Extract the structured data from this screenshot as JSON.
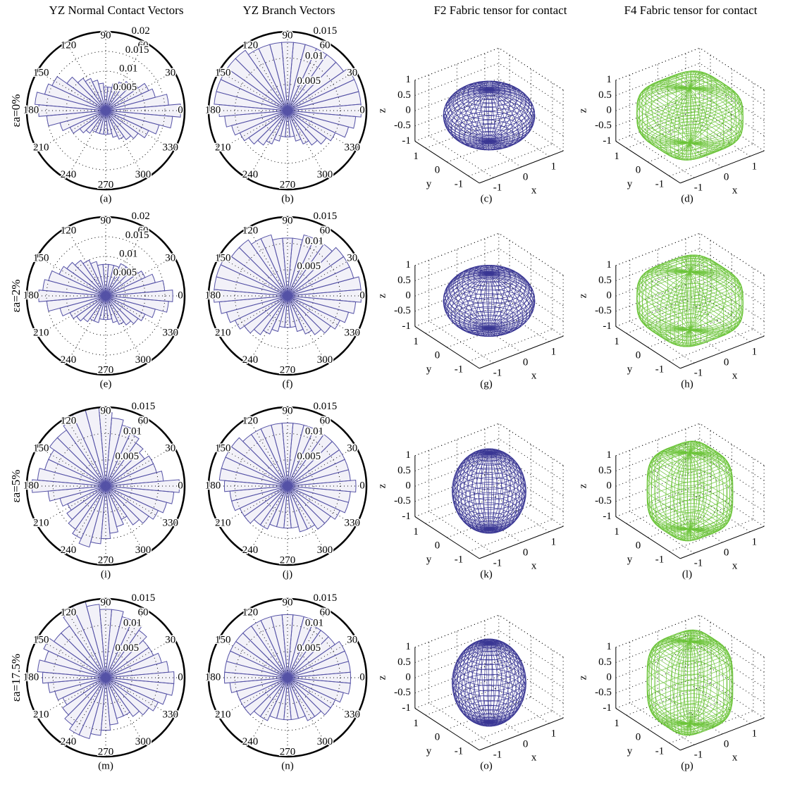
{
  "column_titles": [
    "YZ Normal Contact Vectors",
    "YZ Branch Vectors",
    "F2 Fabric tensor for contact",
    "F4 Fabric tensor for contact"
  ],
  "row_labels": [
    "εa=0%",
    "εa=2%",
    "εa=5%",
    "εa=17.5%"
  ],
  "chart_data": [
    {
      "type": "polar-bar",
      "caption": "(a)",
      "color": "#5552a6",
      "rlim": [
        0,
        0.02
      ],
      "rticks": [
        0.005,
        0.01,
        0.015,
        0.02
      ],
      "theta_ticks": [
        0,
        30,
        60,
        90,
        120,
        150,
        180,
        210,
        240,
        270,
        300,
        330
      ],
      "theta": [
        0,
        10,
        20,
        30,
        40,
        50,
        60,
        70,
        80,
        90,
        100,
        110,
        120,
        130,
        140,
        150,
        160,
        170,
        180,
        190,
        200,
        210,
        220,
        230,
        240,
        250,
        260,
        270,
        280,
        290,
        300,
        310,
        320,
        330,
        340,
        350
      ],
      "values": [
        0.019,
        0.016,
        0.013,
        0.012,
        0.01,
        0.009,
        0.008,
        0.007,
        0.006,
        0.006,
        0.007,
        0.008,
        0.009,
        0.01,
        0.012,
        0.015,
        0.016,
        0.018,
        0.017,
        0.015,
        0.012,
        0.01,
        0.008,
        0.007,
        0.006,
        0.006,
        0.006,
        0.006,
        0.006,
        0.007,
        0.008,
        0.009,
        0.01,
        0.012,
        0.014,
        0.017
      ]
    },
    {
      "type": "polar-bar",
      "caption": "(b)",
      "color": "#5552a6",
      "rlim": [
        0,
        0.015
      ],
      "rticks": [
        0.005,
        0.01,
        0.015
      ],
      "theta_ticks": [
        0,
        30,
        60,
        90,
        120,
        150,
        180,
        210,
        240,
        270,
        300,
        330
      ],
      "theta": [
        0,
        10,
        20,
        30,
        40,
        50,
        60,
        70,
        80,
        90,
        100,
        110,
        120,
        130,
        140,
        150,
        160,
        170,
        180,
        190,
        200,
        210,
        220,
        230,
        240,
        250,
        260,
        270,
        280,
        290,
        300,
        310,
        320,
        330,
        340,
        350
      ],
      "values": [
        0.014,
        0.014,
        0.014,
        0.014,
        0.013,
        0.013,
        0.013,
        0.013,
        0.013,
        0.013,
        0.013,
        0.013,
        0.013,
        0.014,
        0.014,
        0.014,
        0.014,
        0.014,
        0.013,
        0.012,
        0.011,
        0.01,
        0.009,
        0.008,
        0.007,
        0.006,
        0.005,
        0.005,
        0.005,
        0.006,
        0.007,
        0.008,
        0.009,
        0.01,
        0.012,
        0.013
      ]
    },
    {
      "type": "surface",
      "caption": "(c)",
      "order": 2,
      "color": "#3a3794",
      "xlabel": "x",
      "ylabel": "y",
      "zlabel": "z",
      "xlim": [
        -1.5,
        1.5
      ],
      "ylim": [
        -1.5,
        1.5
      ],
      "zlim": [
        -1,
        1
      ],
      "xticks": [
        -1,
        0,
        1
      ],
      "yticks": [
        -1,
        0,
        1
      ],
      "zticks": [
        -1,
        -0.5,
        0,
        0.5,
        1
      ],
      "semi_axes": [
        1.3,
        1.3,
        0.85
      ]
    },
    {
      "type": "surface",
      "caption": "(d)",
      "order": 4,
      "color": "#6cc43a",
      "xlabel": "x",
      "ylabel": "y",
      "zlabel": "z",
      "xlim": [
        -1.5,
        1.5
      ],
      "ylim": [
        -1.5,
        1.5
      ],
      "zlim": [
        -1,
        1
      ],
      "xticks": [
        -1,
        0,
        1
      ],
      "yticks": [
        -1,
        0,
        1
      ],
      "zticks": [
        -1,
        -0.5,
        0,
        0.5,
        1
      ],
      "semi_axes": [
        1.3,
        1.3,
        0.9
      ]
    },
    {
      "type": "polar-bar",
      "caption": "(e)",
      "color": "#5552a6",
      "rlim": [
        0,
        0.02
      ],
      "rticks": [
        0.005,
        0.01,
        0.015,
        0.02
      ],
      "theta_ticks": [
        0,
        30,
        60,
        90,
        120,
        150,
        180,
        210,
        240,
        270,
        300,
        330
      ],
      "theta": [
        0,
        10,
        20,
        30,
        40,
        50,
        60,
        70,
        80,
        90,
        100,
        110,
        120,
        130,
        140,
        150,
        160,
        170,
        180,
        190,
        200,
        210,
        220,
        230,
        240,
        250,
        260,
        270,
        280,
        290,
        300,
        310,
        320,
        330,
        340,
        350
      ],
      "values": [
        0.017,
        0.015,
        0.013,
        0.011,
        0.01,
        0.009,
        0.009,
        0.008,
        0.008,
        0.008,
        0.008,
        0.009,
        0.01,
        0.011,
        0.012,
        0.013,
        0.015,
        0.016,
        0.017,
        0.015,
        0.012,
        0.01,
        0.009,
        0.008,
        0.007,
        0.007,
        0.006,
        0.006,
        0.006,
        0.007,
        0.008,
        0.009,
        0.01,
        0.011,
        0.013,
        0.016
      ]
    },
    {
      "type": "polar-bar",
      "caption": "(f)",
      "color": "#5552a6",
      "rlim": [
        0,
        0.015
      ],
      "rticks": [
        0.005,
        0.01,
        0.015
      ],
      "theta_ticks": [
        0,
        30,
        60,
        90,
        120,
        150,
        180,
        210,
        240,
        270,
        300,
        330
      ],
      "theta": [
        0,
        10,
        20,
        30,
        40,
        50,
        60,
        70,
        80,
        90,
        100,
        110,
        120,
        130,
        140,
        150,
        160,
        170,
        180,
        190,
        200,
        210,
        220,
        230,
        240,
        250,
        260,
        270,
        280,
        290,
        300,
        310,
        320,
        330,
        340,
        350
      ],
      "values": [
        0.014,
        0.014,
        0.013,
        0.013,
        0.013,
        0.012,
        0.012,
        0.012,
        0.011,
        0.011,
        0.011,
        0.012,
        0.012,
        0.013,
        0.013,
        0.014,
        0.014,
        0.014,
        0.014,
        0.013,
        0.012,
        0.011,
        0.01,
        0.009,
        0.008,
        0.007,
        0.006,
        0.006,
        0.006,
        0.007,
        0.008,
        0.009,
        0.01,
        0.011,
        0.012,
        0.013
      ]
    },
    {
      "type": "surface",
      "caption": "(g)",
      "order": 2,
      "color": "#3a3794",
      "xlabel": "x",
      "ylabel": "y",
      "zlabel": "z",
      "xlim": [
        -1.5,
        1.5
      ],
      "ylim": [
        -1.5,
        1.5
      ],
      "zlim": [
        -1,
        1
      ],
      "xticks": [
        -1,
        0,
        1
      ],
      "yticks": [
        -1,
        0,
        1
      ],
      "zticks": [
        -1,
        -0.5,
        0,
        0.5,
        1
      ],
      "semi_axes": [
        1.3,
        1.3,
        0.9
      ]
    },
    {
      "type": "surface",
      "caption": "(h)",
      "order": 4,
      "color": "#6cc43a",
      "xlabel": "x",
      "ylabel": "y",
      "zlabel": "z",
      "xlim": [
        -1.5,
        1.5
      ],
      "ylim": [
        -1.5,
        1.5
      ],
      "zlim": [
        -1,
        1
      ],
      "xticks": [
        -1,
        0,
        1
      ],
      "yticks": [
        -1,
        0,
        1
      ],
      "zticks": [
        -1,
        -0.5,
        0,
        0.5,
        1
      ],
      "semi_axes": [
        1.3,
        1.3,
        0.95
      ]
    },
    {
      "type": "polar-bar",
      "caption": "(i)",
      "color": "#5552a6",
      "rlim": [
        0,
        0.015
      ],
      "rticks": [
        0.005,
        0.01,
        0.015
      ],
      "theta_ticks": [
        0,
        30,
        60,
        90,
        120,
        150,
        180,
        210,
        240,
        270,
        300,
        330
      ],
      "theta": [
        0,
        10,
        20,
        30,
        40,
        50,
        60,
        70,
        80,
        90,
        100,
        110,
        120,
        130,
        140,
        150,
        160,
        170,
        180,
        190,
        200,
        210,
        220,
        230,
        240,
        250,
        260,
        270,
        280,
        290,
        300,
        310,
        320,
        330,
        340,
        350
      ],
      "values": [
        0.014,
        0.011,
        0.01,
        0.01,
        0.009,
        0.01,
        0.011,
        0.012,
        0.013,
        0.014,
        0.015,
        0.015,
        0.014,
        0.013,
        0.013,
        0.012,
        0.012,
        0.013,
        0.014,
        0.011,
        0.009,
        0.008,
        0.009,
        0.01,
        0.011,
        0.012,
        0.011,
        0.01,
        0.009,
        0.008,
        0.007,
        0.009,
        0.01,
        0.011,
        0.012,
        0.013
      ]
    },
    {
      "type": "polar-bar",
      "caption": "(j)",
      "color": "#5552a6",
      "rlim": [
        0,
        0.015
      ],
      "rticks": [
        0.005,
        0.01,
        0.015
      ],
      "theta_ticks": [
        0,
        30,
        60,
        90,
        120,
        150,
        180,
        210,
        240,
        270,
        300,
        330
      ],
      "theta": [
        0,
        10,
        20,
        30,
        40,
        50,
        60,
        70,
        80,
        90,
        100,
        110,
        120,
        130,
        140,
        150,
        160,
        170,
        180,
        190,
        200,
        210,
        220,
        230,
        240,
        250,
        260,
        270,
        280,
        290,
        300,
        310,
        320,
        330,
        340,
        350
      ],
      "values": [
        0.013,
        0.012,
        0.012,
        0.012,
        0.012,
        0.012,
        0.012,
        0.012,
        0.012,
        0.012,
        0.012,
        0.012,
        0.012,
        0.012,
        0.013,
        0.013,
        0.013,
        0.013,
        0.012,
        0.011,
        0.011,
        0.01,
        0.01,
        0.009,
        0.009,
        0.008,
        0.008,
        0.008,
        0.008,
        0.009,
        0.009,
        0.01,
        0.01,
        0.011,
        0.012,
        0.012
      ]
    },
    {
      "type": "surface",
      "caption": "(k)",
      "order": 2,
      "color": "#3a3794",
      "xlabel": "x",
      "ylabel": "y",
      "zlabel": "z",
      "xlim": [
        -1.5,
        1.5
      ],
      "ylim": [
        -1.5,
        1.5
      ],
      "zlim": [
        -1,
        1
      ],
      "xticks": [
        -1,
        0,
        1
      ],
      "yticks": [
        -1,
        0,
        1
      ],
      "zticks": [
        -1,
        -0.5,
        0,
        0.5,
        1
      ],
      "semi_axes": [
        1.05,
        1.05,
        1.25
      ]
    },
    {
      "type": "surface",
      "caption": "(l)",
      "order": 4,
      "color": "#6cc43a",
      "xlabel": "x",
      "ylabel": "y",
      "zlabel": "z",
      "xlim": [
        -1.5,
        1.5
      ],
      "ylim": [
        -1.5,
        1.5
      ],
      "zlim": [
        -1,
        1
      ],
      "xticks": [
        -1,
        0,
        1
      ],
      "yticks": [
        -1,
        0,
        1
      ],
      "zticks": [
        -1,
        -0.5,
        0,
        0.5,
        1
      ],
      "semi_axes": [
        1.05,
        1.05,
        1.25
      ]
    },
    {
      "type": "polar-bar",
      "caption": "(m)",
      "color": "#5552a6",
      "rlim": [
        0,
        0.015
      ],
      "rticks": [
        0.005,
        0.01,
        0.015
      ],
      "theta_ticks": [
        0,
        30,
        60,
        90,
        120,
        150,
        180,
        210,
        240,
        270,
        300,
        330
      ],
      "theta": [
        0,
        10,
        20,
        30,
        40,
        50,
        60,
        70,
        80,
        90,
        100,
        110,
        120,
        130,
        140,
        150,
        160,
        170,
        180,
        190,
        200,
        210,
        220,
        230,
        240,
        250,
        260,
        270,
        280,
        290,
        300,
        310,
        320,
        330,
        340,
        350
      ],
      "values": [
        0.013,
        0.012,
        0.011,
        0.01,
        0.01,
        0.011,
        0.012,
        0.012,
        0.013,
        0.013,
        0.014,
        0.015,
        0.014,
        0.012,
        0.012,
        0.013,
        0.012,
        0.013,
        0.012,
        0.011,
        0.01,
        0.009,
        0.01,
        0.011,
        0.012,
        0.012,
        0.011,
        0.01,
        0.009,
        0.008,
        0.008,
        0.009,
        0.01,
        0.011,
        0.012,
        0.013
      ]
    },
    {
      "type": "polar-bar",
      "caption": "(n)",
      "color": "#5552a6",
      "rlim": [
        0,
        0.015
      ],
      "rticks": [
        0.005,
        0.01,
        0.015
      ],
      "theta_ticks": [
        0,
        30,
        60,
        90,
        120,
        150,
        180,
        210,
        240,
        270,
        300,
        330
      ],
      "theta": [
        0,
        10,
        20,
        30,
        40,
        50,
        60,
        70,
        80,
        90,
        100,
        110,
        120,
        130,
        140,
        150,
        160,
        170,
        180,
        190,
        200,
        210,
        220,
        230,
        240,
        250,
        260,
        270,
        280,
        290,
        300,
        310,
        320,
        330,
        340,
        350
      ],
      "values": [
        0.012,
        0.012,
        0.012,
        0.012,
        0.011,
        0.011,
        0.011,
        0.012,
        0.012,
        0.012,
        0.012,
        0.012,
        0.012,
        0.012,
        0.012,
        0.012,
        0.012,
        0.012,
        0.012,
        0.011,
        0.01,
        0.01,
        0.01,
        0.009,
        0.009,
        0.008,
        0.008,
        0.008,
        0.008,
        0.008,
        0.009,
        0.009,
        0.01,
        0.01,
        0.011,
        0.012
      ]
    },
    {
      "type": "surface",
      "caption": "(o)",
      "order": 2,
      "color": "#3a3794",
      "xlabel": "x",
      "ylabel": "y",
      "zlabel": "z",
      "xlim": [
        -1.5,
        1.5
      ],
      "ylim": [
        -1.5,
        1.5
      ],
      "zlim": [
        -1,
        1
      ],
      "xticks": [
        -1,
        0,
        1
      ],
      "yticks": [
        -1,
        0,
        1
      ],
      "zticks": [
        -1,
        -0.5,
        0,
        0.5,
        1
      ],
      "semi_axes": [
        1.05,
        1.05,
        1.3
      ]
    },
    {
      "type": "surface",
      "caption": "(p)",
      "order": 4,
      "color": "#6cc43a",
      "xlabel": "x",
      "ylabel": "y",
      "zlabel": "z",
      "xlim": [
        -1.5,
        1.5
      ],
      "ylim": [
        -1.5,
        1.5
      ],
      "zlim": [
        -1,
        1
      ],
      "xticks": [
        -1,
        0,
        1
      ],
      "yticks": [
        -1,
        0,
        1
      ],
      "zticks": [
        -1,
        -0.5,
        0,
        0.5,
        1
      ],
      "semi_axes": [
        1.05,
        1.05,
        1.35
      ]
    }
  ]
}
